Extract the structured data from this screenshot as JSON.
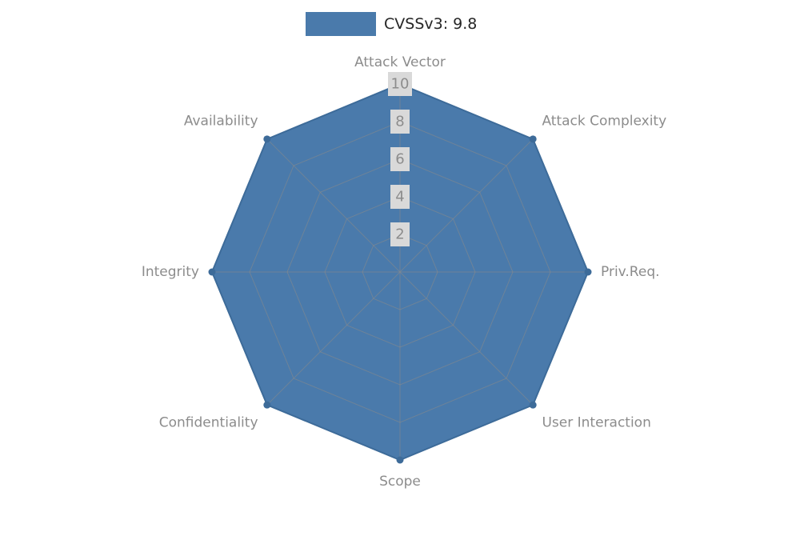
{
  "legend": {
    "label": "CVSSv3: 9.8"
  },
  "chart_data": {
    "type": "radar",
    "title": "CVSSv3: 9.8",
    "categories": [
      "Attack Vector",
      "Attack Complexity",
      "Priv.Req.",
      "User Interaction",
      "Scope",
      "Confidentiality",
      "Integrity",
      "Availability"
    ],
    "series": [
      {
        "name": "CVSSv3: 9.8",
        "values": [
          10,
          10,
          10,
          10,
          10,
          10,
          10,
          10
        ]
      }
    ],
    "ticks": [
      2,
      4,
      6,
      8,
      10
    ],
    "max": 10,
    "min": 0,
    "legend_position": "top",
    "grid": true,
    "colors": {
      "fill": "#4a7aab",
      "outline": "#3d6b99",
      "vertex_dot": "#3d6b99",
      "grid_line": "#8a8a8a",
      "axis_label": "#8c8c8c",
      "tick_text": "#8c8c8c",
      "tick_background": "#d9d9d9",
      "legend_text": "#262626"
    }
  }
}
